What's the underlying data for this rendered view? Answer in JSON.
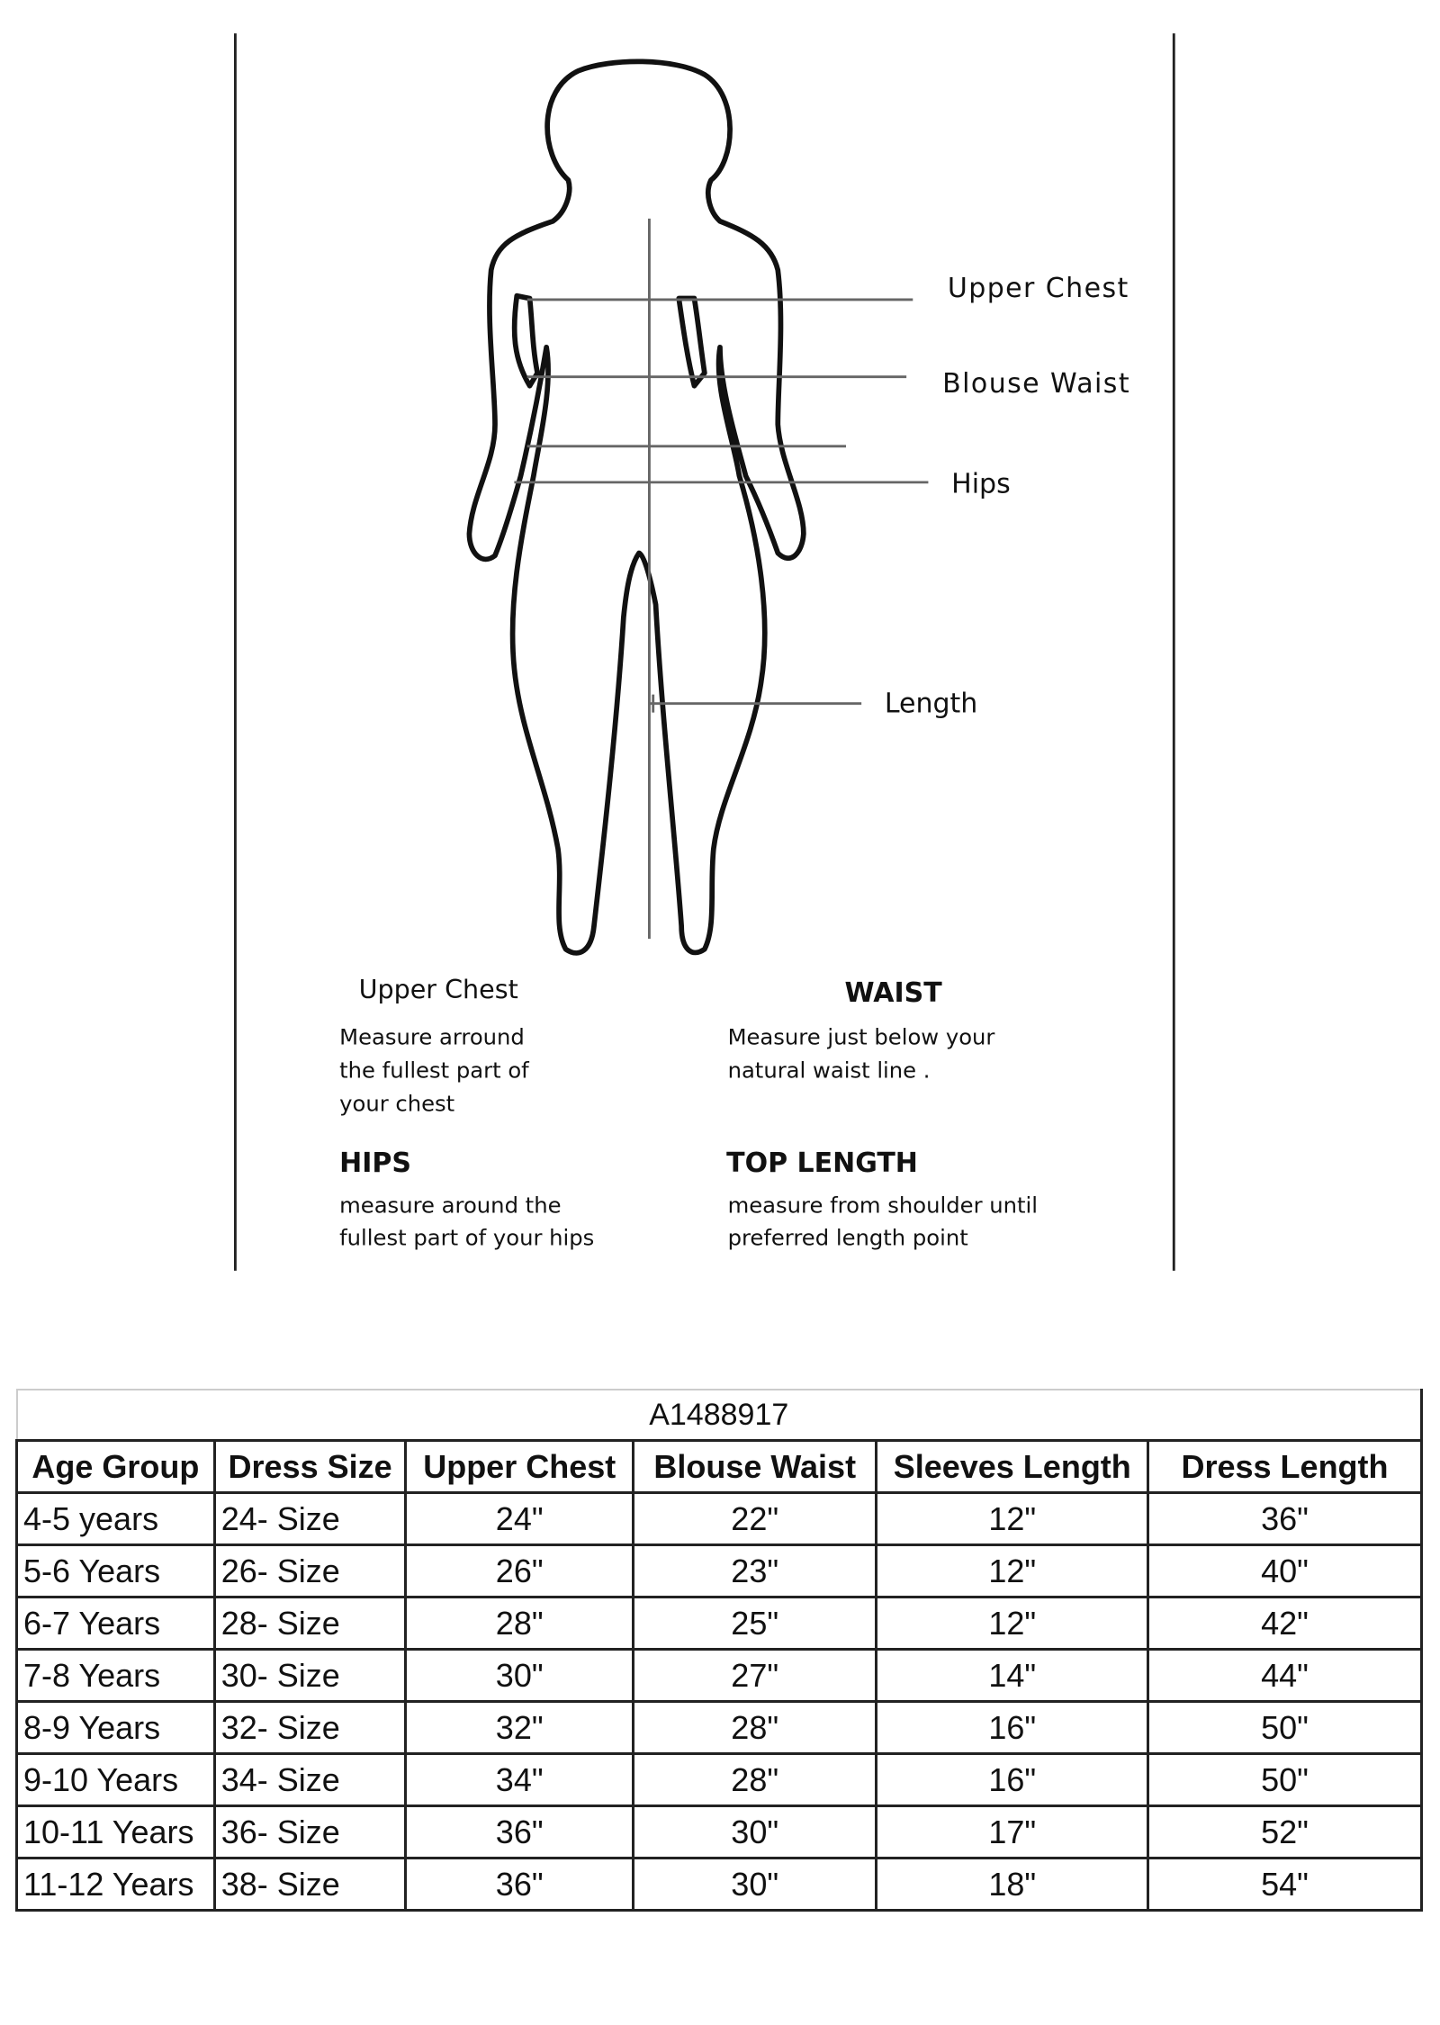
{
  "diagram": {
    "labels": {
      "upper_chest": "Upper Chest",
      "blouse_waist": "Blouse Waist",
      "hips": "Hips",
      "length": "Length"
    },
    "instructions": [
      {
        "heading": "Upper Chest",
        "lines": [
          "Measure arround",
          "the fullest part of",
          "your chest"
        ]
      },
      {
        "heading": "WAIST",
        "lines": [
          "Measure just below your",
          "natural waist line ."
        ]
      },
      {
        "heading": "HIPS",
        "lines": [
          "measure around the",
          "fullest part of your hips"
        ]
      },
      {
        "heading": "TOP LENGTH",
        "lines": [
          "measure from shoulder until",
          "preferred length point"
        ]
      }
    ]
  },
  "size_table": {
    "title": "A1488917",
    "headers": [
      "Age Group",
      "Dress Size",
      "Upper Chest",
      "Blouse Waist",
      "Sleeves Length",
      "Dress Length"
    ],
    "rows": [
      [
        "4-5 years",
        "24- Size",
        "24\"",
        "22\"",
        "12\"",
        "36\""
      ],
      [
        "5-6 Years",
        "26- Size",
        "26\"",
        "23\"",
        "12\"",
        "40\""
      ],
      [
        "6-7 Years",
        "28- Size",
        "28\"",
        "25\"",
        "12\"",
        "42\""
      ],
      [
        "7-8 Years",
        "30- Size",
        "30\"",
        "27\"",
        "14\"",
        "44\""
      ],
      [
        "8-9 Years",
        "32- Size",
        "32\"",
        "28\"",
        "16\"",
        "50\""
      ],
      [
        "9-10 Years",
        "34- Size",
        "34\"",
        "28\"",
        "16\"",
        "50\""
      ],
      [
        "10-11 Years",
        "36- Size",
        "36\"",
        "30\"",
        "17\"",
        "52\""
      ],
      [
        "11-12 Years",
        "38- Size",
        "36\"",
        "30\"",
        "18\"",
        "54\""
      ]
    ]
  }
}
